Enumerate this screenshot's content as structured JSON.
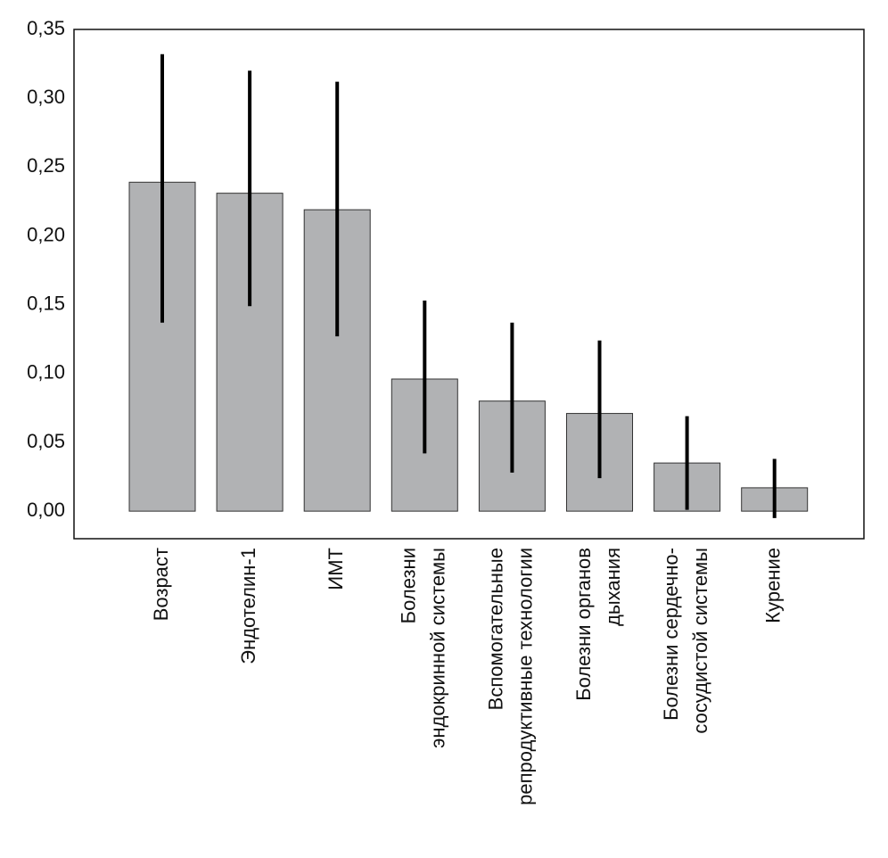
{
  "chart_data": {
    "type": "bar",
    "categories": [
      [
        "Возраст"
      ],
      [
        "Эндотелин-1"
      ],
      [
        "ИМТ"
      ],
      [
        "Болезни",
        "эндокринной системы"
      ],
      [
        "Вспомогательные",
        "репродуктивные технологии"
      ],
      [
        "Болезни органов",
        "дыхания"
      ],
      [
        "Болезни сердечно-",
        "сосудистой системы"
      ],
      [
        "Курение"
      ]
    ],
    "values": [
      0.239,
      0.231,
      0.219,
      0.096,
      0.08,
      0.071,
      0.035,
      0.017
    ],
    "lower": [
      0.137,
      0.149,
      0.127,
      0.042,
      0.028,
      0.024,
      0.001,
      -0.005
    ],
    "upper": [
      0.332,
      0.32,
      0.312,
      0.153,
      0.137,
      0.124,
      0.069,
      0.038
    ],
    "color": "#b1b2b4",
    "error_color": "#000000",
    "ylim": [
      -0.02,
      0.35
    ],
    "yticks": [
      {
        "value": 0,
        "label": "0,00"
      },
      {
        "value": 0.05,
        "label": "0,05"
      },
      {
        "value": 0.1,
        "label": "0,10"
      },
      {
        "value": 0.15,
        "label": "0,15"
      },
      {
        "value": 0.2,
        "label": "0,20"
      },
      {
        "value": 0.25,
        "label": "0,25"
      },
      {
        "value": 0.3,
        "label": "0,30"
      },
      {
        "value": 0.35,
        "label": "0,35"
      }
    ],
    "grid": false
  }
}
